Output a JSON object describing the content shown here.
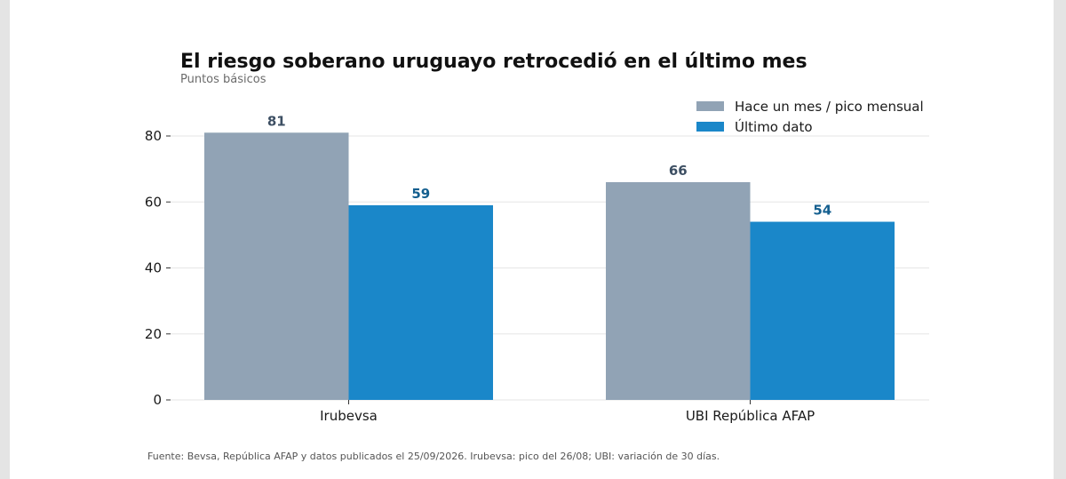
{
  "title": "El riesgo soberano uruguayo retrocedió en el último mes",
  "subtitle": "Puntos básicos",
  "source": "Fuente: Bevsa, República AFAP y datos publicados el 25/09/2026. Irubevsa: pico del 26/08; UBI: variación de 30 días.",
  "colors": {
    "previous": "#91a3b5",
    "latest": "#1a87c9",
    "prev_label": "#3d4f63",
    "latest_label": "#145f8f"
  },
  "legend": [
    {
      "label": "Hace un mes / pico mensual",
      "color": "#91a3b5"
    },
    {
      "label": "Último dato",
      "color": "#1a87c9"
    }
  ],
  "chart_data": {
    "type": "bar",
    "categories": [
      "Irubevsa",
      "UBI República AFAP"
    ],
    "series": [
      {
        "name": "Hace un mes / pico mensual",
        "values": [
          81,
          66
        ]
      },
      {
        "name": "Último dato",
        "values": [
          59,
          54
        ]
      }
    ],
    "title": "El riesgo soberano uruguayo retrocedió en el último mes",
    "subtitle": "Puntos básicos",
    "ylim": [
      0,
      80
    ],
    "yticks": [
      0,
      20,
      40,
      60,
      80
    ],
    "grid": true,
    "legend_position": "top-right"
  }
}
